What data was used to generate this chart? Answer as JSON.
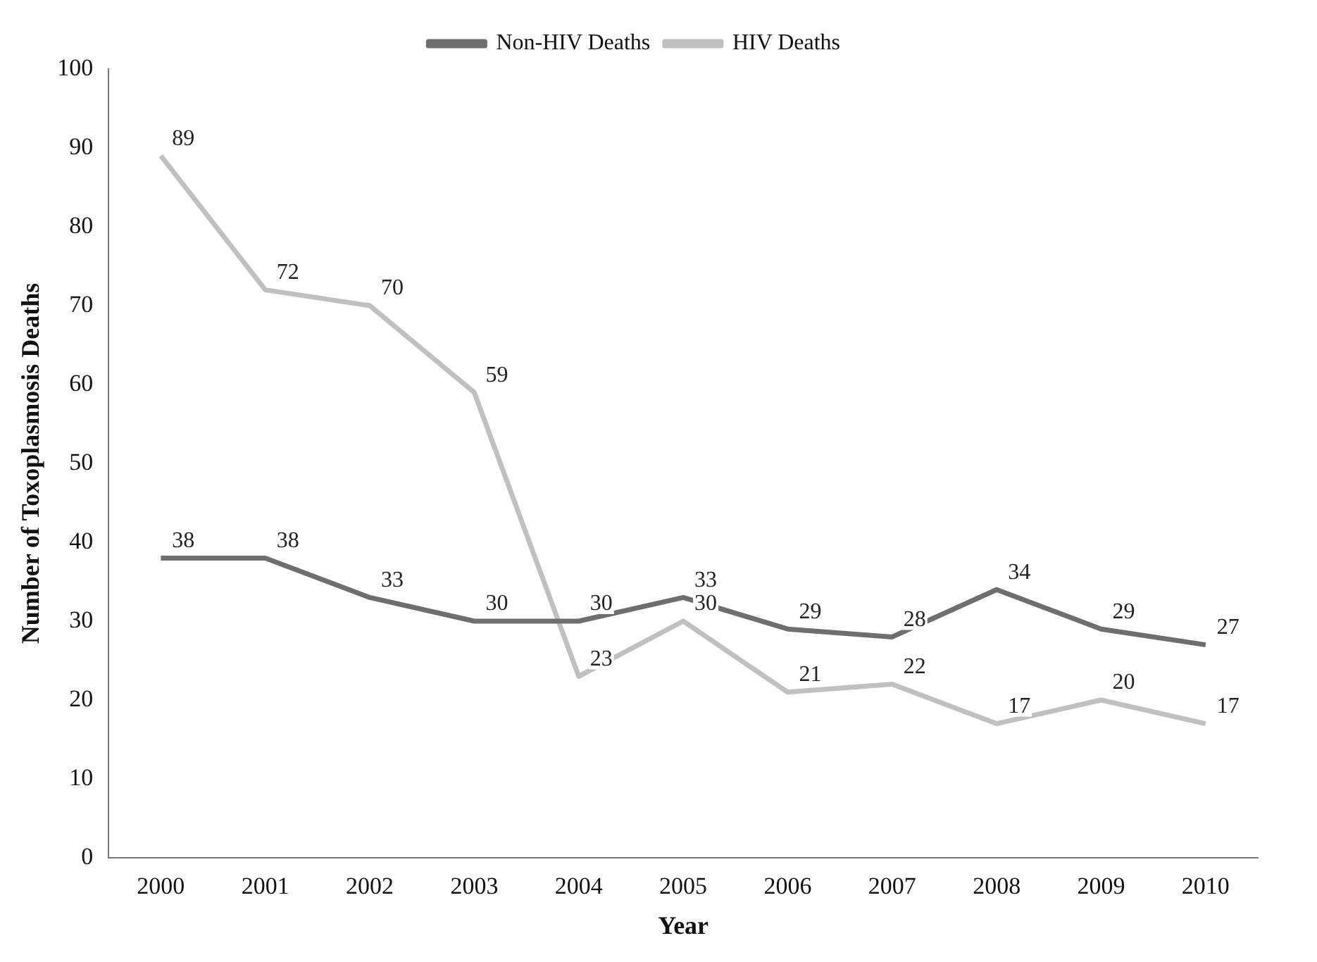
{
  "chart_data": {
    "type": "line",
    "xlabel": "Year",
    "ylabel": "Number of Toxoplasmosis Deaths",
    "categories": [
      "2000",
      "2001",
      "2002",
      "2003",
      "2004",
      "2005",
      "2006",
      "2007",
      "2008",
      "2009",
      "2010"
    ],
    "series": [
      {
        "name": "Non-HIV Deaths",
        "color": "#6e6e6e",
        "values": [
          38,
          38,
          33,
          30,
          30,
          33,
          29,
          28,
          34,
          29,
          27
        ]
      },
      {
        "name": "HIV Deaths",
        "color": "#c0c0c0",
        "values": [
          89,
          72,
          70,
          59,
          23,
          30,
          21,
          22,
          17,
          20,
          17
        ]
      }
    ],
    "ylim": [
      0,
      100
    ],
    "yticks": [
      0,
      10,
      20,
      30,
      40,
      50,
      60,
      70,
      80,
      90,
      100
    ],
    "grid": false,
    "legend": "top",
    "marker": "none",
    "line_style": "solid",
    "data_labels": true
  }
}
